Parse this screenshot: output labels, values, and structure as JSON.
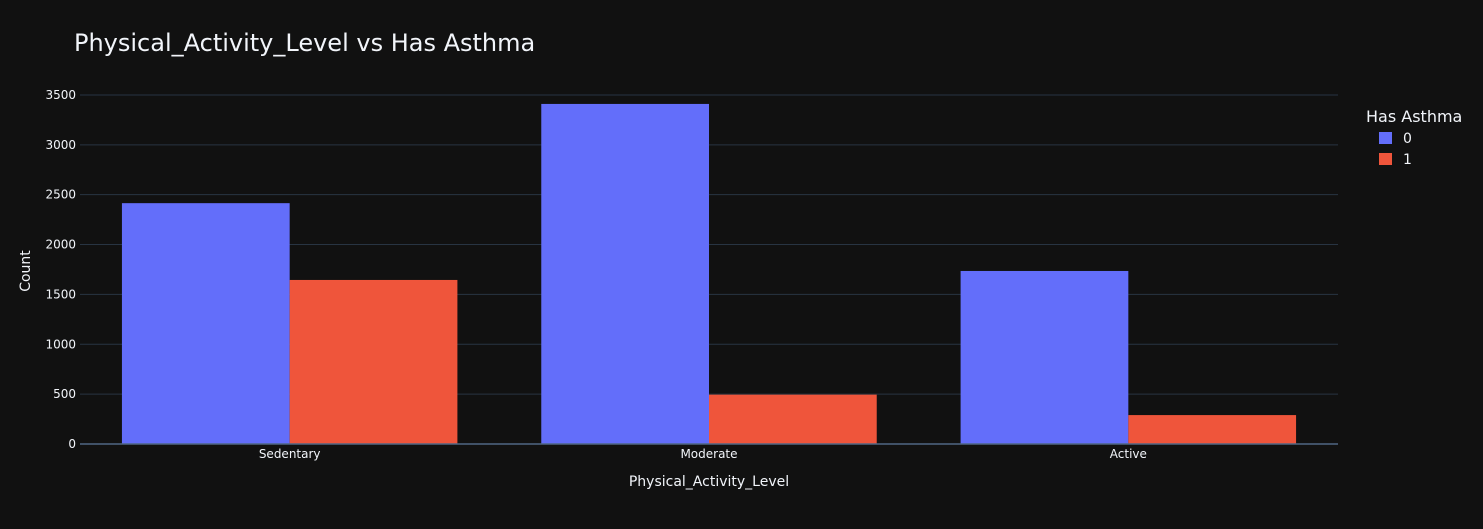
{
  "chart_data": {
    "type": "bar",
    "title": "Physical_Activity_Level vs Has Asthma",
    "xlabel": "Physical_Activity_Level",
    "ylabel": "Count",
    "categories": [
      "Sedentary",
      "Moderate",
      "Active"
    ],
    "series": [
      {
        "name": "0",
        "values": [
          2415,
          3410,
          1735
        ],
        "color": "#636efa"
      },
      {
        "name": "1",
        "values": [
          1645,
          495,
          290
        ],
        "color": "#ef553b"
      }
    ],
    "ylim": [
      0,
      3650
    ],
    "yticks": [
      0,
      500,
      1000,
      1500,
      2000,
      2500,
      3000,
      3500
    ],
    "grid": true,
    "legend": {
      "title": "Has Asthma",
      "placement": "top-right"
    },
    "colors": {
      "background": "#111111",
      "grid": "#283442",
      "text": "#f2f5fa"
    }
  }
}
